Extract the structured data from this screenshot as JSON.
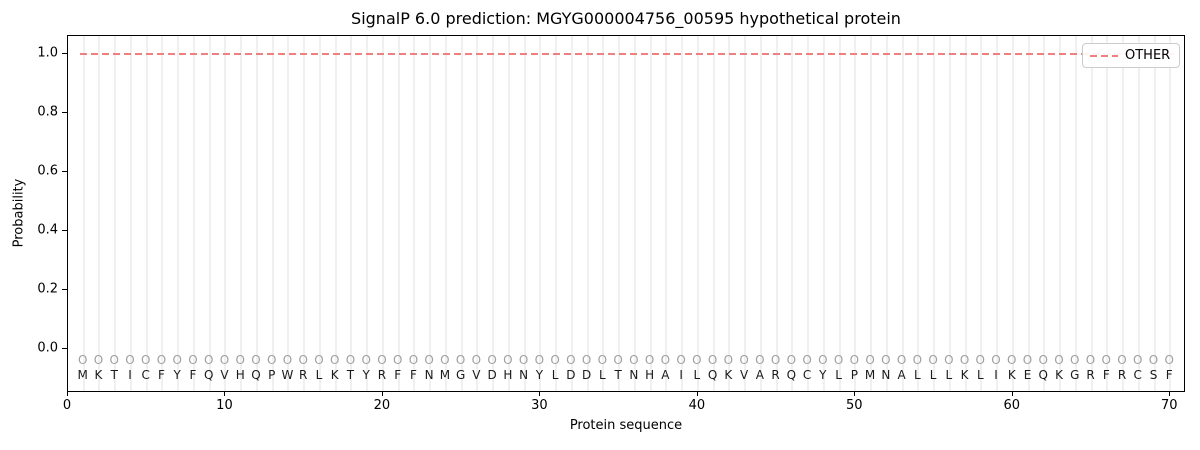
{
  "title": "SignalP 6.0 prediction: MGYG000004756_00595 hypothetical protein",
  "axes": {
    "x_label": "Protein sequence",
    "y_label": "Probability",
    "x_ticks": [
      0,
      10,
      20,
      30,
      40,
      50,
      60,
      70
    ],
    "y_ticks": [
      "1.0",
      "0.8",
      "0.6",
      "0.4",
      "0.2",
      "0.0"
    ]
  },
  "legend": {
    "entries": [
      {
        "label": "OTHER",
        "color": "#f08080",
        "style": "dashed"
      }
    ],
    "position": "upper right"
  },
  "colors": {
    "other_line": "#f08080",
    "gridline": "#f0f0f0",
    "marker": "#a0a0a0",
    "letter": "#1a1a1a"
  },
  "chart_data": {
    "type": "line",
    "title": "SignalP 6.0 prediction: MGYG000004756_00595 hypothetical protein",
    "xlabel": "Protein sequence",
    "ylabel": "Probability",
    "xlim": [
      0,
      71
    ],
    "ylim": [
      -0.15,
      1.06
    ],
    "grid": "vertical gridline at every residue position",
    "legend_position": "upper right",
    "x": [
      1,
      2,
      3,
      4,
      5,
      6,
      7,
      8,
      9,
      10,
      11,
      12,
      13,
      14,
      15,
      16,
      17,
      18,
      19,
      20,
      21,
      22,
      23,
      24,
      25,
      26,
      27,
      28,
      29,
      30,
      31,
      32,
      33,
      34,
      35,
      36,
      37,
      38,
      39,
      40,
      41,
      42,
      43,
      44,
      45,
      46,
      47,
      48,
      49,
      50,
      51,
      52,
      53,
      54,
      55,
      56,
      57,
      58,
      59,
      60,
      61,
      62,
      63,
      64,
      65,
      66,
      67,
      68,
      69,
      70
    ],
    "series": [
      {
        "name": "OTHER",
        "color": "#f08080",
        "style": "dashed",
        "values": [
          1.0,
          1.0,
          1.0,
          1.0,
          1.0,
          1.0,
          1.0,
          1.0,
          1.0,
          1.0,
          1.0,
          1.0,
          1.0,
          1.0,
          1.0,
          1.0,
          1.0,
          1.0,
          1.0,
          1.0,
          1.0,
          1.0,
          1.0,
          1.0,
          1.0,
          1.0,
          1.0,
          1.0,
          1.0,
          1.0,
          1.0,
          1.0,
          1.0,
          1.0,
          1.0,
          1.0,
          1.0,
          1.0,
          1.0,
          1.0,
          1.0,
          1.0,
          1.0,
          1.0,
          1.0,
          1.0,
          1.0,
          1.0,
          1.0,
          1.0,
          1.0,
          1.0,
          1.0,
          1.0,
          1.0,
          1.0,
          1.0,
          1.0,
          1.0,
          1.0,
          1.0,
          1.0,
          1.0,
          1.0,
          1.0,
          1.0,
          1.0,
          1.0,
          1.0,
          1.0
        ]
      }
    ],
    "sequence": "MKTICFYFQVHQPWRLKTYRFFNMGVDHNYLDDLTNHAILQKVARQCYLPMNALLLKLIKEQKGRFRCSF",
    "position_labels": "OOOOOOOOOOOOOOOOOOOOOOOOOOOOOOOOOOOOOOOOOOOOOOOOOOOOOOOOOOOOOOOOOOOOOO"
  }
}
